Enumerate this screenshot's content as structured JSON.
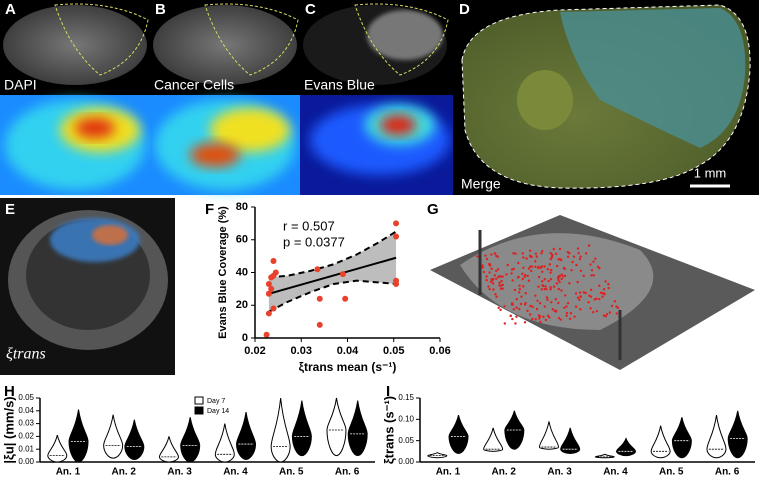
{
  "panels": [
    {
      "label": "A",
      "caption": "DAPI"
    },
    {
      "label": "B",
      "caption": "Cancer Cells"
    },
    {
      "label": "C",
      "caption": "Evans Blue"
    },
    {
      "label": "D",
      "caption": "Merge"
    },
    {
      "label": "E",
      "caption": "ξtrans"
    },
    {
      "label": "F"
    },
    {
      "label": "G"
    },
    {
      "label": "H"
    },
    {
      "label": "I"
    }
  ],
  "scale_bar": "1 mm",
  "chart_data": [
    {
      "type": "scatter",
      "xlabel": "ξtrans mean (s⁻¹)",
      "ylabel": "Evans Blue Coverage (%)",
      "annotations": [
        "r = 0.507",
        "p = 0.0377"
      ],
      "color": "#e8412c",
      "x": [
        0.0225,
        0.023,
        0.023,
        0.0235,
        0.023,
        0.0235,
        0.024,
        0.024,
        0.0245,
        0.024,
        0.0335,
        0.034,
        0.034,
        0.0395,
        0.039,
        0.0505,
        0.0505,
        0.0505,
        0.0505
      ],
      "values": [
        2,
        15,
        27,
        30,
        33,
        37,
        38,
        47,
        40,
        18,
        42,
        24,
        8,
        24,
        39,
        33,
        35,
        62,
        70
      ],
      "fit": {
        "x": [
          0.023,
          0.0505
        ],
        "y": [
          27,
          49
        ]
      },
      "band": {
        "x": [
          0.023,
          0.027,
          0.032,
          0.037,
          0.042,
          0.0465,
          0.0505
        ],
        "upper": [
          37,
          38,
          41,
          45,
          51,
          58,
          65
        ],
        "lower": [
          16,
          22,
          28,
          33,
          35,
          34,
          33
        ]
      },
      "xlim": [
        0.02,
        0.06
      ],
      "xticks": [
        0.02,
        0.03,
        0.04,
        0.05,
        0.06
      ],
      "ylim": [
        0,
        80
      ],
      "yticks": [
        0,
        20,
        40,
        60,
        80
      ]
    },
    {
      "type": "violin",
      "ylabel": "|ξu| (mm/s)",
      "categories": [
        "An. 1",
        "An. 2",
        "An. 3",
        "An. 4",
        "An. 5",
        "An. 6"
      ],
      "series": [
        {
          "name": "Day 7",
          "color": "#ffffff",
          "values": [
            [
              0,
              0.005,
              0.021
            ],
            [
              0.003,
              0.013,
              0.037
            ],
            [
              0,
              0.004,
              0.02
            ],
            [
              0,
              0.006,
              0.03
            ],
            [
              0,
              0.012,
              0.05
            ],
            [
              0.005,
              0.025,
              0.05
            ]
          ]
        },
        {
          "name": "Day 14",
          "color": "#000000",
          "values": [
            [
              0,
              0.016,
              0.041
            ],
            [
              0.002,
              0.012,
              0.033
            ],
            [
              0,
              0.013,
              0.035
            ],
            [
              0.002,
              0.014,
              0.039
            ],
            [
              0.005,
              0.02,
              0.048
            ],
            [
              0.005,
              0.022,
              0.048
            ]
          ]
        }
      ],
      "ylim": [
        0,
        0.05
      ],
      "yticks": [
        {
          "value": 0,
          "label": "0.00"
        },
        {
          "value": 0.01,
          "label": "0.01"
        },
        {
          "value": 0.02,
          "label": "0.02"
        },
        {
          "value": 0.03,
          "label": "0.03"
        },
        {
          "value": 0.04,
          "label": "0.04"
        },
        {
          "value": 0.05,
          "label": "0.05"
        }
      ]
    },
    {
      "type": "violin",
      "ylabel": "ξtrans (s⁻¹)",
      "categories": [
        "An. 1",
        "An. 2",
        "An. 3",
        "An. 4",
        "An. 5",
        "An. 6"
      ],
      "series": [
        {
          "name": "Day 7",
          "color": "#ffffff",
          "values": [
            [
              0.01,
              0.015,
              0.022
            ],
            [
              0.025,
              0.03,
              0.08
            ],
            [
              0.03,
              0.035,
              0.095
            ],
            [
              0.01,
              0.012,
              0.018
            ],
            [
              0.01,
              0.025,
              0.085
            ],
            [
              0.01,
              0.03,
              0.11
            ]
          ]
        },
        {
          "name": "Day 14",
          "color": "#000000",
          "values": [
            [
              0.02,
              0.06,
              0.11
            ],
            [
              0.03,
              0.075,
              0.12
            ],
            [
              0.02,
              0.03,
              0.08
            ],
            [
              0.015,
              0.025,
              0.055
            ],
            [
              0.01,
              0.05,
              0.105
            ],
            [
              0.01,
              0.055,
              0.12
            ]
          ]
        }
      ],
      "ylim": [
        0,
        0.15
      ],
      "yticks": [
        {
          "value": 0,
          "label": "0.00"
        },
        {
          "value": 0.05,
          "label": "0.05"
        },
        {
          "value": 0.1,
          "label": "0.10"
        },
        {
          "value": 0.15,
          "label": "0.15"
        }
      ]
    }
  ]
}
